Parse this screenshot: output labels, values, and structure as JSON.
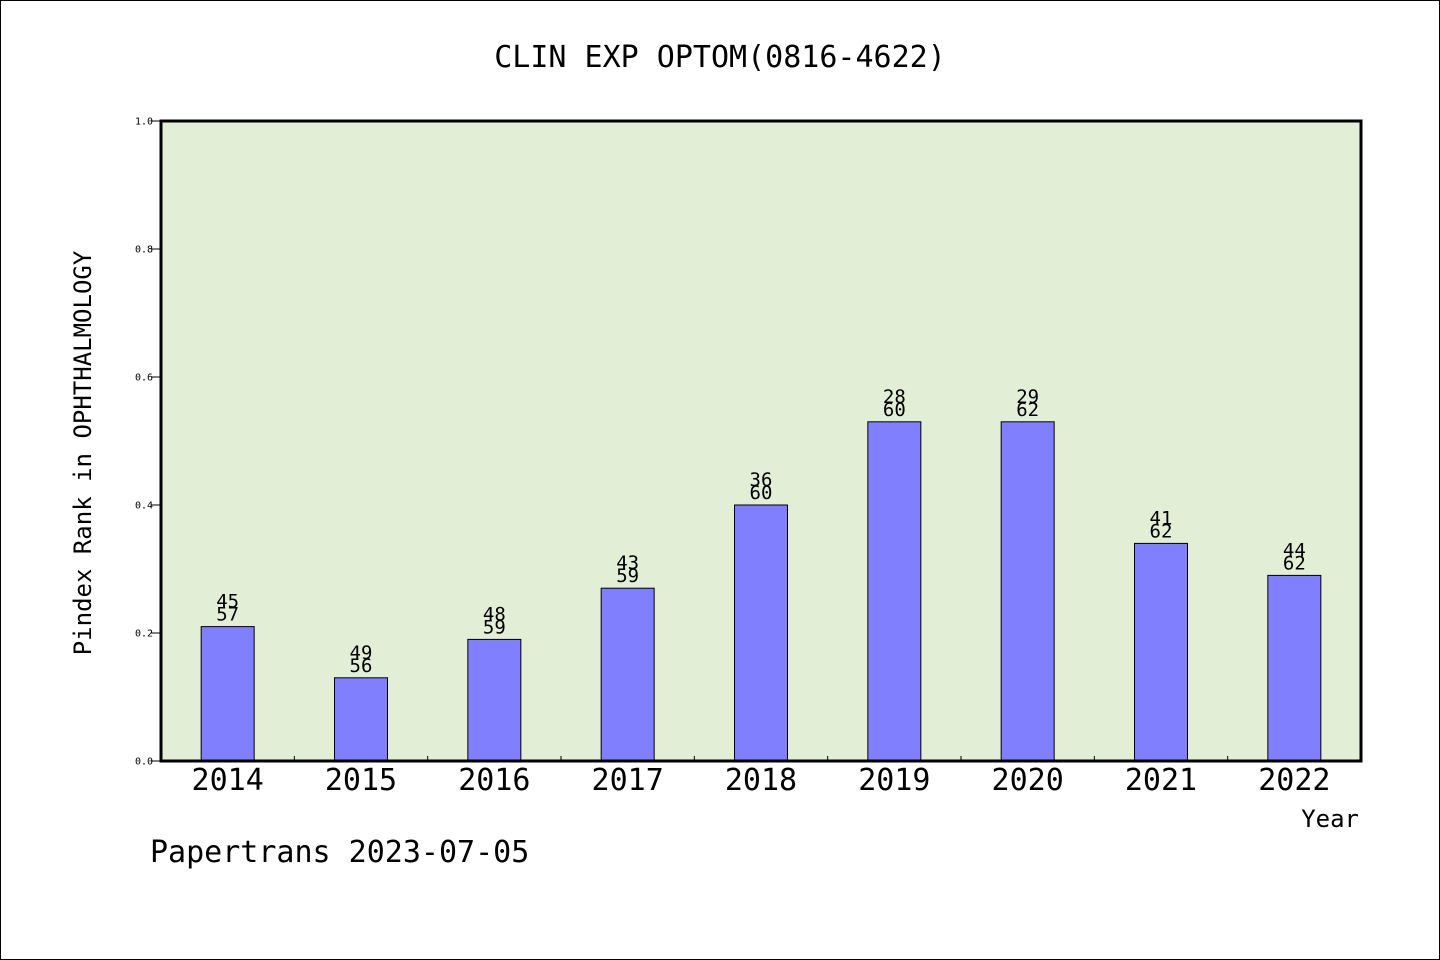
{
  "chart_data": {
    "type": "bar",
    "title": "CLIN EXP OPTOM(0816-4622)",
    "xlabel": "Year",
    "ylabel": "Pindex Rank in OPHTHALMOLOGY",
    "ylim": [
      0,
      1.0
    ],
    "yticks": [
      "0.0",
      "0.2",
      "0.4",
      "0.6",
      "0.8",
      "1.0"
    ],
    "categories": [
      "2014",
      "2015",
      "2016",
      "2017",
      "2018",
      "2019",
      "2020",
      "2021",
      "2022"
    ],
    "values": [
      0.21,
      0.13,
      0.19,
      0.27,
      0.4,
      0.53,
      0.53,
      0.34,
      0.29
    ],
    "annotations": [
      [
        "45",
        "57"
      ],
      [
        "49",
        "56"
      ],
      [
        "48",
        "59"
      ],
      [
        "43",
        "59"
      ],
      [
        "36",
        "60"
      ],
      [
        "28",
        "60"
      ],
      [
        "29",
        "62"
      ],
      [
        "41",
        "62"
      ],
      [
        "44",
        "62"
      ]
    ],
    "grid": false,
    "plot_background": "#e2efd6",
    "bar_color": "#8080ff"
  },
  "footer": {
    "note": "Papertrans 2023-07-05"
  }
}
